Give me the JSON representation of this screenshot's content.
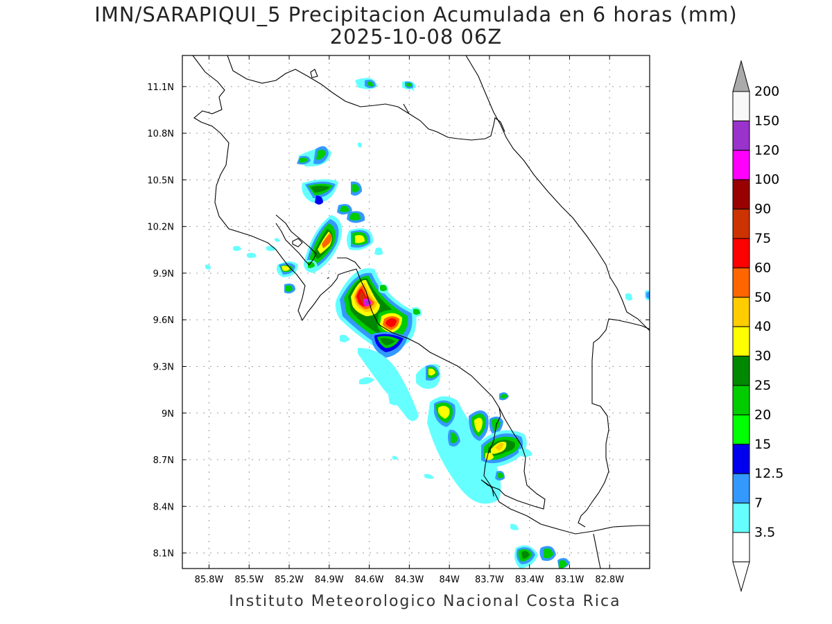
{
  "title": "IMN/SARAPIQUI_5 Precipitacion Acumulada en 6 horas (mm)",
  "subtitle": "2025-10-08 06Z",
  "credit": "Instituto Meteorologico Nacional Costa Rica",
  "map": {
    "lon_range": [
      -86.0,
      -82.5
    ],
    "lat_range": [
      8.0,
      11.3
    ],
    "lon_ticks": [
      {
        "value": -85.8,
        "label": "85.8W"
      },
      {
        "value": -85.5,
        "label": "85.5W"
      },
      {
        "value": -85.2,
        "label": "85.2W"
      },
      {
        "value": -84.9,
        "label": "84.9W"
      },
      {
        "value": -84.6,
        "label": "84.6W"
      },
      {
        "value": -84.3,
        "label": "84.3W"
      },
      {
        "value": -84.0,
        "label": "84W"
      },
      {
        "value": -83.7,
        "label": "83.7W"
      },
      {
        "value": -83.4,
        "label": "83.4W"
      },
      {
        "value": -83.1,
        "label": "83.1W"
      },
      {
        "value": -82.8,
        "label": "82.8W"
      }
    ],
    "lat_ticks": [
      {
        "value": 11.1,
        "label": "11.1N"
      },
      {
        "value": 10.8,
        "label": "10.8N"
      },
      {
        "value": 10.5,
        "label": "10.5N"
      },
      {
        "value": 10.2,
        "label": "10.2N"
      },
      {
        "value": 9.9,
        "label": "9.9N"
      },
      {
        "value": 9.6,
        "label": "9.6N"
      },
      {
        "value": 9.3,
        "label": "9.3N"
      },
      {
        "value": 9.0,
        "label": "9N"
      },
      {
        "value": 8.7,
        "label": "8.7N"
      },
      {
        "value": 8.4,
        "label": "8.4N"
      },
      {
        "value": 8.1,
        "label": "8.1N"
      }
    ],
    "grid": "dotted"
  },
  "legend": {
    "levels": [
      "3.5",
      "7",
      "12.5",
      "15",
      "20",
      "25",
      "30",
      "40",
      "50",
      "60",
      "75",
      "90",
      "100",
      "120",
      "150",
      "200"
    ],
    "colors": [
      "#ffffff",
      "#66ffff",
      "#3399ff",
      "#0000ee",
      "#00ff00",
      "#00cc00",
      "#008800",
      "#ffff00",
      "#ffcc00",
      "#ff6600",
      "#ff0000",
      "#cc3300",
      "#990000",
      "#ff00ff",
      "#9933cc",
      "#f8f8f8"
    ],
    "over_color": "#aaaaaa",
    "under_color": "#ffffff"
  },
  "rain_cells": [
    {
      "lon": -84.89,
      "lat": 10.16,
      "level": 7,
      "r": 0.09
    },
    {
      "lon": -84.93,
      "lat": 10.05,
      "level": 7,
      "r": 0.06
    },
    {
      "lon": -85.18,
      "lat": 9.93,
      "level": 5,
      "r": 0.05
    },
    {
      "lon": -84.7,
      "lat": 9.76,
      "level": 10,
      "r": 0.12
    },
    {
      "lon": -84.62,
      "lat": 9.7,
      "level": 13,
      "r": 0.05
    },
    {
      "lon": -84.47,
      "lat": 9.57,
      "level": 10,
      "r": 0.08
    },
    {
      "lon": -84.71,
      "lat": 10.13,
      "level": 5,
      "r": 0.08
    },
    {
      "lon": -84.99,
      "lat": 10.46,
      "level": 5,
      "r": 0.07
    },
    {
      "lon": -84.12,
      "lat": 9.27,
      "level": 7,
      "r": 0.04
    },
    {
      "lon": -84.03,
      "lat": 9.03,
      "level": 8,
      "r": 0.06
    },
    {
      "lon": -83.82,
      "lat": 8.94,
      "level": 7,
      "r": 0.06
    },
    {
      "lon": -83.63,
      "lat": 8.8,
      "level": 8,
      "r": 0.08
    },
    {
      "lon": -83.44,
      "lat": 8.09,
      "level": 5,
      "r": 0.06
    },
    {
      "lon": -83.27,
      "lat": 8.1,
      "level": 5,
      "r": 0.05
    },
    {
      "lon": -84.36,
      "lat": 11.11,
      "level": 2,
      "r": 0.03
    },
    {
      "lon": -84.6,
      "lat": 11.12,
      "level": 2,
      "r": 0.03
    }
  ]
}
